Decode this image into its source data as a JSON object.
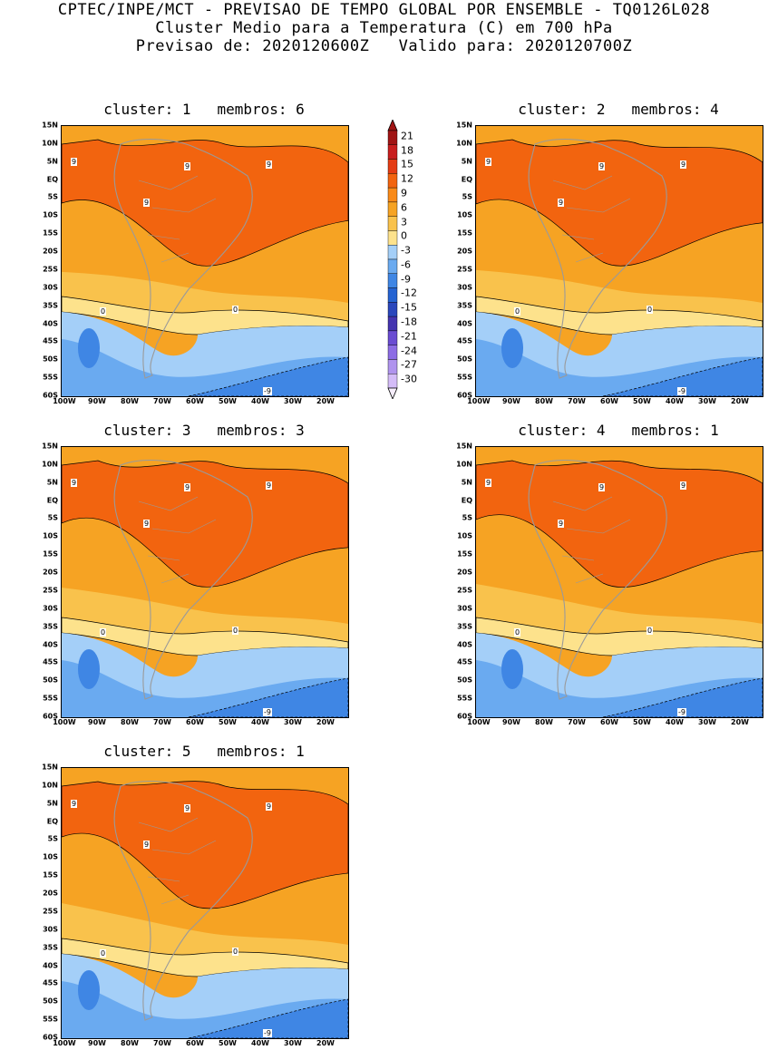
{
  "header": {
    "line1": "CPTEC/INPE/MCT - PREVISAO DE TEMPO GLOBAL POR ENSEMBLE - TQ0126L028",
    "line2": "Cluster Medio para a Temperatura (C) em 700 hPa",
    "line3": "Previsao de: 2020120600Z   Valido para: 2020120700Z"
  },
  "axes": {
    "lat_ticks": [
      "15N",
      "10N",
      "5N",
      "EQ",
      "5S",
      "10S",
      "15S",
      "20S",
      "25S",
      "30S",
      "35S",
      "40S",
      "45S",
      "50S",
      "55S",
      "60S"
    ],
    "lon_ticks": [
      "100W",
      "90W",
      "80W",
      "70W",
      "60W",
      "50W",
      "40W",
      "30W",
      "20W"
    ]
  },
  "colorbar": {
    "labels": [
      "21",
      "18",
      "15",
      "12",
      "9",
      "6",
      "3",
      "0",
      "-3",
      "-6",
      "-9",
      "-12",
      "-15",
      "-18",
      "-21",
      "-24",
      "-27",
      "-30"
    ],
    "colors": [
      "#a01414",
      "#c81e1e",
      "#e43c14",
      "#f2640f",
      "#f98a18",
      "#f6a323",
      "#f9c24c",
      "#fde28c",
      "#a4cff8",
      "#6aaaf0",
      "#3f86e4",
      "#2563d2",
      "#2a47bc",
      "#4434b0",
      "#6a4cd2",
      "#8c6ce4",
      "#b094ee",
      "#d4bcf8"
    ]
  },
  "panels": [
    {
      "title": "cluster: 1   membros: 6",
      "contours": {
        "c9a": "9",
        "c9b": "9",
        "c9c": "9",
        "c9d": "9",
        "c0": "0",
        "c0b": "0",
        "cm9": "-9"
      }
    },
    {
      "title": "cluster: 2   membros: 4",
      "contours": {
        "c9a": "9",
        "c9b": "9",
        "c9c": "9",
        "c9d": "9",
        "c0": "0",
        "c0b": "0",
        "cm9": "-9"
      }
    },
    {
      "title": "cluster: 3   membros: 3",
      "contours": {
        "c9a": "9",
        "c9b": "9",
        "c9c": "9",
        "c9d": "9",
        "c0": "0",
        "c0b": "0",
        "cm9": "-9"
      }
    },
    {
      "title": "cluster: 4   membros: 1",
      "contours": {
        "c9a": "9",
        "c9b": "9",
        "c9c": "9",
        "c9d": "9",
        "c0": "0",
        "c0b": "0",
        "cm9": "-9"
      }
    },
    {
      "title": "cluster: 5   membros: 1",
      "contours": {
        "c9a": "9",
        "c9b": "9",
        "c9c": "9",
        "c9d": "9",
        "c0": "0",
        "c0b": "0",
        "cm9": "-9"
      }
    }
  ]
}
